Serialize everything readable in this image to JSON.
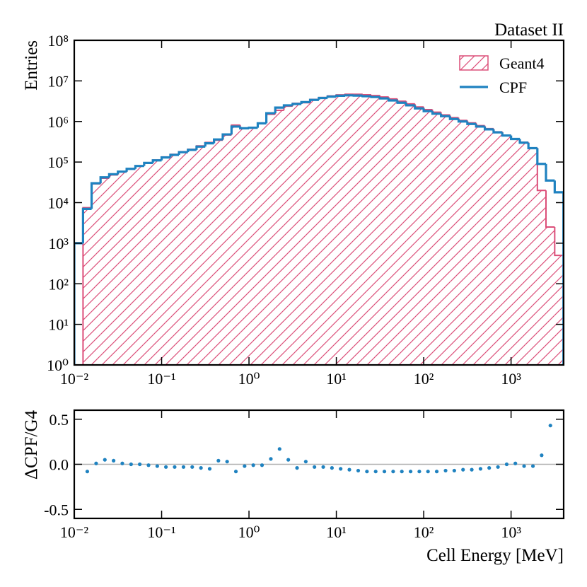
{
  "chart_data": [
    {
      "type": "histogram",
      "annotation": "Dataset II",
      "ylabel": "Entries",
      "xscale": "log",
      "yscale": "log",
      "legend": "upper right",
      "bins": [
        0.01,
        0.0126,
        0.0158,
        0.02,
        0.0251,
        0.0316,
        0.0398,
        0.0501,
        0.0631,
        0.0794,
        0.1,
        0.126,
        0.158,
        0.2,
        0.251,
        0.316,
        0.398,
        0.501,
        0.631,
        0.794,
        1,
        1.26,
        1.58,
        2,
        2.51,
        3.16,
        3.98,
        5.01,
        6.31,
        7.94,
        10,
        12.6,
        15.8,
        20,
        25.1,
        31.6,
        39.8,
        50.1,
        63.1,
        79.4,
        100,
        126,
        158,
        200,
        251,
        316,
        398,
        501,
        631,
        794,
        1000,
        1260,
        1580,
        2000,
        2510,
        3160,
        3980
      ],
      "series": [
        {
          "name": "Geant4",
          "color": "#dc4f79",
          "style": "hatch",
          "values": [
            0,
            7500,
            29000,
            40000,
            48000,
            57000,
            68000,
            80000,
            96000,
            112000,
            134000,
            155000,
            180000,
            206000,
            250000,
            305000,
            345000,
            465000,
            815000,
            690000,
            705000,
            910000,
            1500000,
            1880000,
            2380000,
            2800000,
            2900000,
            3500000,
            3900000,
            4270000,
            4520000,
            4680000,
            4680000,
            4560000,
            4350000,
            4020000,
            3590000,
            3150000,
            2720000,
            2280000,
            1960000,
            1690000,
            1450000,
            1240000,
            1060000,
            925000,
            790000,
            667000,
            557000,
            450000,
            366000,
            306000,
            224000,
            20000,
            2500,
            500
          ]
        },
        {
          "name": "CPF",
          "color": "#1f82c0",
          "style": "step",
          "values": [
            1000,
            7000,
            30000,
            42000,
            50000,
            58000,
            68000,
            80000,
            95000,
            110000,
            130000,
            150000,
            175000,
            200000,
            240000,
            290000,
            360000,
            480000,
            750000,
            680000,
            700000,
            900000,
            1600000,
            2200000,
            2500000,
            2700000,
            3000000,
            3400000,
            3800000,
            4100000,
            4300000,
            4400000,
            4350000,
            4200000,
            4000000,
            3700000,
            3300000,
            2900000,
            2500000,
            2100000,
            1800000,
            1550000,
            1350000,
            1150000,
            1000000,
            870000,
            750000,
            640000,
            540000,
            450000,
            370000,
            300000,
            220000,
            90000,
            35000,
            18000
          ]
        }
      ],
      "xlim": [
        0.01,
        4000
      ],
      "ylim": [
        1,
        100000000
      ],
      "xticks": [
        {
          "value": 0.01,
          "label": "10⁻²"
        },
        {
          "value": 0.1,
          "label": "10⁻¹"
        },
        {
          "value": 1,
          "label": "10⁰"
        },
        {
          "value": 10,
          "label": "10¹"
        },
        {
          "value": 100,
          "label": "10²"
        },
        {
          "value": 1000,
          "label": "10³"
        }
      ],
      "yticks": [
        {
          "value": 1,
          "label": "10⁰"
        },
        {
          "value": 10,
          "label": "10¹"
        },
        {
          "value": 100,
          "label": "10²"
        },
        {
          "value": 1000,
          "label": "10³"
        },
        {
          "value": 10000,
          "label": "10⁴"
        },
        {
          "value": 100000,
          "label": "10⁵"
        },
        {
          "value": 1000000,
          "label": "10⁶"
        },
        {
          "value": 10000000,
          "label": "10⁷"
        },
        {
          "value": 100000000,
          "label": "10⁸"
        }
      ]
    },
    {
      "type": "scatter",
      "ylabel": "ΔCPF/G4",
      "xlabel": "Cell Energy [MeV]",
      "xscale": "log",
      "x": [
        0.0112,
        0.0141,
        0.0178,
        0.0224,
        0.0282,
        0.0355,
        0.0447,
        0.0562,
        0.0708,
        0.0891,
        0.112,
        0.141,
        0.178,
        0.224,
        0.282,
        0.355,
        0.447,
        0.562,
        0.708,
        0.891,
        1.12,
        1.41,
        1.78,
        2.24,
        2.82,
        3.55,
        4.47,
        5.62,
        7.08,
        8.91,
        11.2,
        14.1,
        17.8,
        22.4,
        28.2,
        35.5,
        44.7,
        56.2,
        70.8,
        89.1,
        112,
        141,
        178,
        224,
        282,
        355,
        447,
        562,
        708,
        891,
        1120,
        1410,
        1780,
        2240,
        2820,
        3550
      ],
      "series": [
        {
          "color": "#1f82c0",
          "values": [
            null,
            -0.08,
            0.01,
            0.05,
            0.04,
            0.01,
            0.0,
            0.0,
            -0.01,
            -0.02,
            -0.03,
            -0.03,
            -0.03,
            -0.03,
            -0.04,
            -0.05,
            0.04,
            0.03,
            -0.08,
            -0.02,
            -0.01,
            -0.01,
            0.06,
            0.17,
            0.05,
            -0.04,
            0.03,
            -0.03,
            -0.03,
            -0.04,
            -0.05,
            -0.06,
            -0.07,
            -0.08,
            -0.08,
            -0.08,
            -0.08,
            -0.08,
            -0.08,
            -0.08,
            -0.08,
            -0.08,
            -0.07,
            -0.07,
            -0.06,
            -0.06,
            -0.05,
            -0.04,
            -0.03,
            0.0,
            0.01,
            -0.02,
            -0.02,
            0.1,
            0.43,
            null
          ]
        }
      ],
      "xlim": [
        0.01,
        4000
      ],
      "ylim": [
        -0.6,
        0.6
      ],
      "xticks": [
        {
          "value": 0.01,
          "label": "10⁻²"
        },
        {
          "value": 0.1,
          "label": "10⁻¹"
        },
        {
          "value": 1,
          "label": "10⁰"
        },
        {
          "value": 10,
          "label": "10¹"
        },
        {
          "value": 100,
          "label": "10²"
        },
        {
          "value": 1000,
          "label": "10³"
        }
      ],
      "yticks": [
        {
          "value": -0.5,
          "label": "-0.5"
        },
        {
          "value": 0,
          "label": "0.0"
        },
        0.5
      ]
    }
  ]
}
